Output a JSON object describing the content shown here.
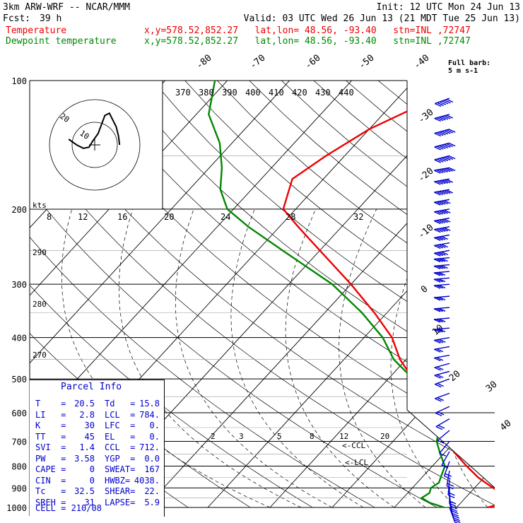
{
  "header": {
    "model": "3km ARW-WRF -- NCAR/MMM",
    "init": "Init: 12 UTC Mon 24 Jun 13",
    "fcst_label": "Fcst:",
    "fcst_value": "39 h",
    "valid": "Valid: 03 UTC Wed 26 Jun 13 (21 MDT Tue 25 Jun 13)",
    "temp_label": "Temperature",
    "dew_label": "Dewpoint temperature",
    "location": "x,y=578.52,852.27   lat,lon= 48.56, -93.40   stn=INL ,72747"
  },
  "colors": {
    "temperature": "#ee0000",
    "dewpoint": "#008800",
    "barbs": "#0000cc",
    "axes": "#000000"
  },
  "chart_data": {
    "type": "line",
    "chart_kind": "skew-T log-p",
    "pressure_axis": {
      "label_ticks": [
        "100",
        "200",
        "300",
        "400",
        "500",
        "600",
        "700",
        "800",
        "900",
        "1000"
      ],
      "scale": "log",
      "ylim": [
        1000,
        100
      ]
    },
    "temperature_axis_labels": [
      "-80",
      "-70",
      "-60",
      "-50",
      "-40",
      "-30",
      "-20",
      "-10",
      "0",
      "10",
      "20",
      "30",
      "40"
    ],
    "theta_e_labels": [
      "370",
      "380",
      "390",
      "400",
      "410",
      "420",
      "430",
      "440"
    ],
    "dry_adiabat_labels": [
      "290",
      "280",
      "270"
    ],
    "mixing_ratio_labels": [
      "2",
      "3",
      "5",
      "8",
      "12",
      "20"
    ],
    "lcl_markers": [
      "<-CCL",
      "<-LCL"
    ],
    "hodograph": {
      "units_label": "kts",
      "speed_labels": [
        "8",
        "12",
        "16",
        "20",
        "24",
        "28",
        "32"
      ],
      "ring_labels": [
        "20",
        "10"
      ],
      "points_u": [
        -23,
        -16,
        -10,
        -5,
        -2,
        3,
        6,
        9,
        13,
        16,
        19,
        21,
        22
      ],
      "points_v": [
        -5,
        0,
        3,
        2,
        -3,
        -10,
        -18,
        -26,
        -28,
        -22,
        -16,
        -8,
        0
      ]
    },
    "series": [
      {
        "name": "Temperature",
        "points": [
          [
            1000,
            25
          ],
          [
            975,
            27
          ],
          [
            950,
            26.5
          ],
          [
            925,
            25
          ],
          [
            900,
            23
          ],
          [
            875,
            21
          ],
          [
            850,
            19
          ],
          [
            800,
            15.5
          ],
          [
            750,
            12
          ],
          [
            700,
            9
          ],
          [
            650,
            5.5
          ],
          [
            600,
            2
          ],
          [
            550,
            -2
          ],
          [
            500,
            -6
          ],
          [
            450,
            -11
          ],
          [
            400,
            -15.5
          ],
          [
            350,
            -22
          ],
          [
            300,
            -30
          ],
          [
            250,
            -40
          ],
          [
            220,
            -47
          ],
          [
            200,
            -52
          ],
          [
            170,
            -55
          ],
          [
            150,
            -53
          ],
          [
            130,
            -50
          ],
          [
            110,
            -44
          ],
          [
            100,
            -40
          ]
        ]
      },
      {
        "name": "Dewpoint temperature",
        "points": [
          [
            1000,
            18
          ],
          [
            975,
            15
          ],
          [
            950,
            13
          ],
          [
            925,
            13.5
          ],
          [
            900,
            13
          ],
          [
            875,
            13.5
          ],
          [
            850,
            13
          ],
          [
            800,
            12
          ],
          [
            750,
            9.5
          ],
          [
            700,
            7
          ],
          [
            650,
            5.5
          ],
          [
            600,
            2
          ],
          [
            550,
            -2
          ],
          [
            500,
            -6
          ],
          [
            450,
            -12
          ],
          [
            400,
            -17
          ],
          [
            350,
            -24
          ],
          [
            300,
            -33
          ],
          [
            250,
            -46
          ],
          [
            220,
            -55
          ],
          [
            200,
            -61
          ],
          [
            180,
            -65
          ],
          [
            160,
            -68
          ],
          [
            140,
            -72
          ],
          [
            120,
            -78
          ],
          [
            100,
            -82
          ]
        ]
      }
    ],
    "wind_barbs": {
      "label": "Full barb: 5 m s-1",
      "pressures": [
        110,
        120,
        130,
        140,
        150,
        160,
        170,
        180,
        190,
        200,
        210,
        220,
        230,
        240,
        250,
        260,
        270,
        280,
        290,
        300,
        320,
        340,
        360,
        380,
        400,
        420,
        440,
        460,
        480,
        500,
        540,
        580,
        620,
        660,
        700,
        740,
        780,
        820,
        860,
        900,
        925,
        950,
        975,
        1000
      ],
      "speeds_ms": [
        30,
        32,
        35,
        35,
        35,
        35,
        30,
        30,
        25,
        25,
        25,
        25,
        20,
        20,
        20,
        20,
        20,
        15,
        15,
        15,
        15,
        15,
        15,
        15,
        15,
        10,
        10,
        10,
        10,
        10,
        10,
        10,
        10,
        5,
        5,
        5,
        10,
        10,
        10,
        10,
        10,
        10,
        10,
        10
      ],
      "directions_deg": [
        250,
        255,
        255,
        255,
        255,
        260,
        260,
        260,
        260,
        260,
        260,
        260,
        260,
        260,
        260,
        265,
        265,
        265,
        265,
        265,
        265,
        265,
        265,
        265,
        260,
        260,
        260,
        255,
        255,
        250,
        250,
        245,
        240,
        230,
        220,
        210,
        200,
        190,
        185,
        180,
        175,
        170,
        165,
        160
      ]
    }
  },
  "parcel_info": {
    "title": "Parcel Info",
    "rows": [
      [
        "T    =",
        "20.5",
        "Td   =",
        "15.8"
      ],
      [
        "LI   =",
        "2.8",
        "LCL  =",
        "784."
      ],
      [
        "K    =",
        "30",
        "LFC  =",
        "0."
      ],
      [
        "TT   =",
        "45",
        "EL   =",
        "0."
      ],
      [
        "SVI  =",
        "1.4",
        "CCL  =",
        "712."
      ],
      [
        "PW   =",
        "3.58",
        "YGP  =",
        "0.0"
      ],
      [
        "CAPE =",
        "0",
        "SWEAT=",
        "167"
      ],
      [
        "CIN  =",
        "0",
        "HWBZ=",
        "4038."
      ],
      [
        "Tc   =",
        "32.5",
        "SHEAR=",
        "22."
      ],
      [
        "SREH =",
        "31",
        "LAPSE=",
        "5.9"
      ]
    ],
    "cell": "CELL = 210/08"
  }
}
